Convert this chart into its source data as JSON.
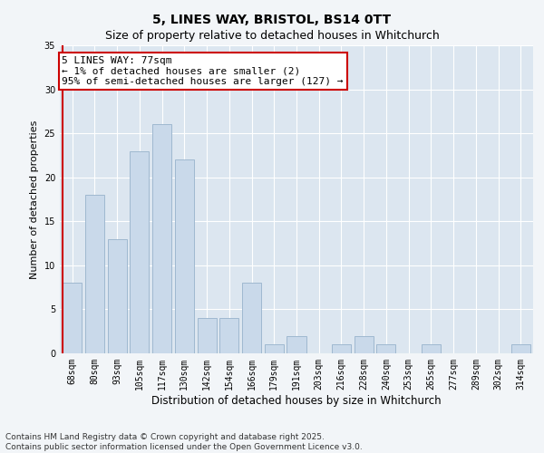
{
  "title": "5, LINES WAY, BRISTOL, BS14 0TT",
  "subtitle": "Size of property relative to detached houses in Whitchurch",
  "xlabel": "Distribution of detached houses by size in Whitchurch",
  "ylabel": "Number of detached properties",
  "categories": [
    "68sqm",
    "80sqm",
    "93sqm",
    "105sqm",
    "117sqm",
    "130sqm",
    "142sqm",
    "154sqm",
    "166sqm",
    "179sqm",
    "191sqm",
    "203sqm",
    "216sqm",
    "228sqm",
    "240sqm",
    "253sqm",
    "265sqm",
    "277sqm",
    "289sqm",
    "302sqm",
    "314sqm"
  ],
  "values": [
    8,
    18,
    13,
    23,
    26,
    22,
    4,
    4,
    8,
    1,
    2,
    0,
    1,
    2,
    1,
    0,
    1,
    0,
    0,
    0,
    1
  ],
  "bar_color": "#c9d9ea",
  "bar_edge_color": "#9fb8d0",
  "vline_color": "#cc0000",
  "annotation_text": "5 LINES WAY: 77sqm\n← 1% of detached houses are smaller (2)\n95% of semi-detached houses are larger (127) →",
  "annotation_box_color": "#ffffff",
  "annotation_box_edge_color": "#cc0000",
  "ylim": [
    0,
    35
  ],
  "yticks": [
    0,
    5,
    10,
    15,
    20,
    25,
    30,
    35
  ],
  "plot_bg_color": "#dce6f0",
  "fig_bg_color": "#f2f5f8",
  "footer_text": "Contains HM Land Registry data © Crown copyright and database right 2025.\nContains public sector information licensed under the Open Government Licence v3.0.",
  "title_fontsize": 10,
  "subtitle_fontsize": 9,
  "xlabel_fontsize": 8.5,
  "ylabel_fontsize": 8,
  "tick_fontsize": 7,
  "annotation_fontsize": 8,
  "footer_fontsize": 6.5
}
